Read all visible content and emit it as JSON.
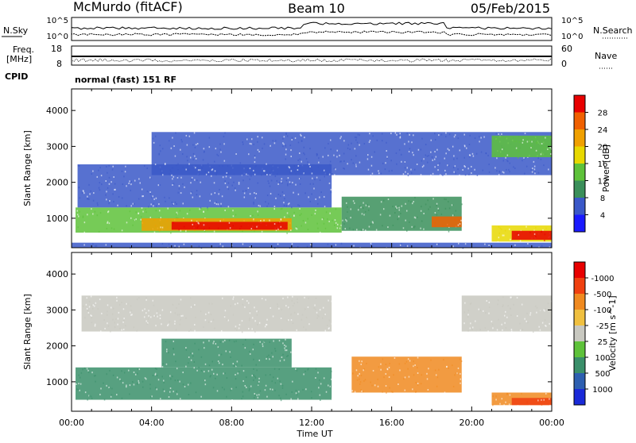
{
  "header": {
    "station": "McMurdo (fitACF)",
    "beam": "Beam 10",
    "date": "05/Feb/2015"
  },
  "noise_panel": {
    "left_label": "N.Sky",
    "right_label": "N.Search",
    "left_ticks": [
      "10^5",
      "10^0"
    ],
    "right_ticks": [
      "10^5",
      "10^0"
    ]
  },
  "freq_panel": {
    "left_label_1": "Freq.",
    "left_label_2": "[MHz]",
    "right_label": "Nave",
    "left_ticks": [
      "18",
      "8"
    ],
    "right_ticks": [
      "60",
      "0"
    ]
  },
  "cpid": {
    "label": "CPID",
    "value": "normal (fast) 151 RF"
  },
  "time_axis": {
    "label": "Time UT",
    "ticks": [
      "00:00",
      "04:00",
      "08:00",
      "12:00",
      "16:00",
      "20:00",
      "00:00"
    ]
  },
  "chart_data": [
    {
      "type": "heatmap",
      "name": "power",
      "x_range_hours": [
        0,
        24
      ],
      "ylabel": "Slant Range [km]",
      "yticks": [
        1000,
        2000,
        3000,
        4000
      ],
      "ylim": [
        180,
        4600
      ],
      "colorbar": {
        "label": "Power [dB]",
        "ticks": [
          4,
          8,
          12,
          16,
          20,
          24,
          28
        ],
        "colors": [
          "#1a1aff",
          "#3a58c8",
          "#3a8f5a",
          "#5ec23a",
          "#e8d800",
          "#f0a000",
          "#f06000",
          "#e80000"
        ],
        "range": [
          0,
          32
        ]
      },
      "regions": [
        {
          "t0": 0.2,
          "t1": 13.5,
          "r0": 600,
          "r1": 1300,
          "level": 16,
          "color": "#5ec23a"
        },
        {
          "t0": 3.5,
          "t1": 11.0,
          "r0": 650,
          "r1": 1000,
          "level": 24,
          "color": "#f0a000"
        },
        {
          "t0": 5.0,
          "t1": 10.8,
          "r0": 680,
          "r1": 900,
          "level": 28,
          "color": "#e80000"
        },
        {
          "t0": 0.3,
          "t1": 13.0,
          "r0": 1300,
          "r1": 2500,
          "level": 8,
          "color": "#3a58c8"
        },
        {
          "t0": 4.0,
          "t1": 24.0,
          "r0": 2200,
          "r1": 3400,
          "level": 8,
          "color": "#3a58c8"
        },
        {
          "t0": 13.5,
          "t1": 19.5,
          "r0": 650,
          "r1": 1600,
          "level": 12,
          "color": "#3a8f5a"
        },
        {
          "t0": 18.0,
          "t1": 19.5,
          "r0": 750,
          "r1": 1050,
          "level": 24,
          "color": "#f06000"
        },
        {
          "t0": 21.0,
          "t1": 24.0,
          "r0": 350,
          "r1": 800,
          "level": 20,
          "color": "#e8d800"
        },
        {
          "t0": 22.0,
          "t1": 24.0,
          "r0": 400,
          "r1": 650,
          "level": 28,
          "color": "#e80000"
        },
        {
          "t0": 21.0,
          "t1": 24.0,
          "r0": 2700,
          "r1": 3300,
          "level": 16,
          "color": "#5ec23a"
        },
        {
          "t0": 0.0,
          "t1": 24.0,
          "r0": 190,
          "r1": 320,
          "level": 8,
          "color": "#3a58c8"
        }
      ]
    },
    {
      "type": "heatmap",
      "name": "velocity",
      "x_range_hours": [
        0,
        24
      ],
      "ylabel": "Slant Range [km]",
      "yticks": [
        1000,
        2000,
        3000,
        4000
      ],
      "ylim": [
        180,
        4600
      ],
      "colorbar": {
        "label": "Velocity [m s^-1]",
        "ticks": [
          "1000",
          "500",
          "100",
          "25",
          "-25",
          "-100",
          "-500",
          "-1000"
        ],
        "colors": [
          "#1a2ad8",
          "#2d5fb0",
          "#3a8f6a",
          "#5ec23a",
          "#c8c8c0",
          "#f0c040",
          "#f08a20",
          "#f04010",
          "#e80000"
        ]
      },
      "regions": [
        {
          "t0": 0.2,
          "t1": 13.0,
          "r0": 500,
          "r1": 1400,
          "level": "500",
          "color": "#3a8f6a"
        },
        {
          "t0": 4.5,
          "t1": 11.0,
          "r0": 1400,
          "r1": 2200,
          "level": "500",
          "color": "#3a8f6a"
        },
        {
          "t0": 0.5,
          "t1": 13.0,
          "r0": 2400,
          "r1": 3400,
          "level": "25",
          "color": "#c8c8c0"
        },
        {
          "t0": 14.0,
          "t1": 19.5,
          "r0": 700,
          "r1": 1700,
          "level": "-100",
          "color": "#f08a20"
        },
        {
          "t0": 19.5,
          "t1": 24.0,
          "r0": 2400,
          "r1": 3400,
          "level": "25",
          "color": "#c8c8c0"
        },
        {
          "t0": 21.0,
          "t1": 24.0,
          "r0": 350,
          "r1": 700,
          "level": "-100",
          "color": "#f08a20"
        },
        {
          "t0": 22.0,
          "t1": 24.0,
          "r0": 350,
          "r1": 550,
          "level": "-500",
          "color": "#f04010"
        }
      ]
    }
  ]
}
